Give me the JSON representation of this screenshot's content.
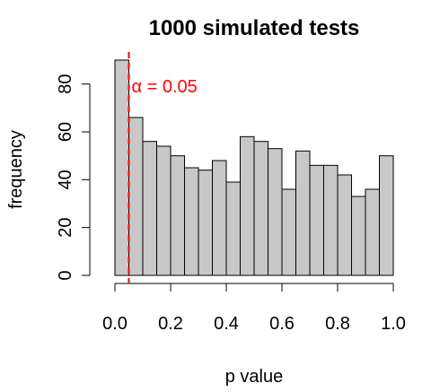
{
  "chart_data": {
    "type": "bar",
    "title": "1000 simulated tests",
    "xlabel": "p value",
    "ylabel": "frequency",
    "bins": [
      [
        0.0,
        0.05
      ],
      [
        0.05,
        0.1
      ],
      [
        0.1,
        0.15
      ],
      [
        0.15,
        0.2
      ],
      [
        0.2,
        0.25
      ],
      [
        0.25,
        0.3
      ],
      [
        0.3,
        0.35
      ],
      [
        0.35,
        0.4
      ],
      [
        0.4,
        0.45
      ],
      [
        0.45,
        0.5
      ],
      [
        0.5,
        0.55
      ],
      [
        0.55,
        0.6
      ],
      [
        0.6,
        0.65
      ],
      [
        0.65,
        0.7
      ],
      [
        0.7,
        0.75
      ],
      [
        0.75,
        0.8
      ],
      [
        0.8,
        0.85
      ],
      [
        0.85,
        0.9
      ],
      [
        0.9,
        0.95
      ],
      [
        0.95,
        1.0
      ]
    ],
    "values": [
      90,
      66,
      56,
      54,
      50,
      45,
      44,
      48,
      39,
      58,
      56,
      53,
      36,
      52,
      46,
      46,
      42,
      33,
      36,
      50
    ],
    "xlim": [
      0,
      1
    ],
    "ylim": [
      0,
      90
    ],
    "xticks": [
      0.0,
      0.2,
      0.4,
      0.6,
      0.8,
      1.0
    ],
    "xtick_labels": [
      "0.0",
      "0.2",
      "0.4",
      "0.6",
      "0.8",
      "1.0"
    ],
    "yticks": [
      0,
      20,
      40,
      60,
      80
    ],
    "ytick_labels": [
      "0",
      "20",
      "40",
      "60",
      "80"
    ],
    "grid": false,
    "reference_line": {
      "x": 0.05,
      "label": "α = 0.05",
      "color": "#ff0000",
      "style": "dashed"
    },
    "bar_fill": "#c8c8c8",
    "bar_stroke": "#000000"
  }
}
